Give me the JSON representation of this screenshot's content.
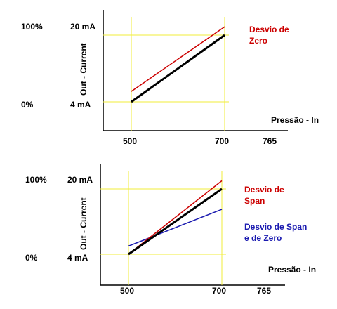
{
  "chart_data": [
    {
      "type": "line",
      "ylabel": "Out - Current",
      "xlabel": "Pressão - In",
      "x_ticks": [
        "500",
        "700",
        "765"
      ],
      "y_ticks": [
        "4 mA",
        "20 mA"
      ],
      "y_percent": [
        "0%",
        "100%"
      ],
      "xlim": [
        442,
        790
      ],
      "ylim": [
        -6,
        30
      ],
      "series": [
        {
          "name": "",
          "color": "#000000",
          "x": [
            500,
            700
          ],
          "y": [
            4,
            20
          ]
        },
        {
          "name": "Desvio de Zero",
          "color": "#cc0000",
          "x": [
            500,
            700
          ],
          "y": [
            6.5,
            22
          ]
        }
      ],
      "annotations": [
        {
          "text": "Desvio de",
          "color": "#cc0000"
        },
        {
          "text": "Zero",
          "color": "#cc0000"
        }
      ]
    },
    {
      "type": "line",
      "ylabel": "Out - Current",
      "xlabel": "Pressão - In",
      "x_ticks": [
        "500",
        "700",
        "765"
      ],
      "y_ticks": [
        "4 mA",
        "20 mA"
      ],
      "y_percent": [
        "0%",
        "100%"
      ],
      "xlim": [
        442,
        790
      ],
      "ylim": [
        -6,
        30
      ],
      "series": [
        {
          "name": "",
          "color": "#000000",
          "x": [
            500,
            700
          ],
          "y": [
            4,
            20
          ]
        },
        {
          "name": "Desvio de Span",
          "color": "#cc0000",
          "x": [
            500,
            700
          ],
          "y": [
            4,
            22
          ]
        },
        {
          "name": "Desvio de Span e de Zero",
          "color": "#1a1ab0",
          "x": [
            500,
            700
          ],
          "y": [
            6,
            15
          ]
        }
      ],
      "annotations": [
        {
          "text": "Desvio de",
          "color": "#cc0000"
        },
        {
          "text": "Span",
          "color": "#cc0000"
        },
        {
          "text": "Desvio de Span",
          "color": "#1a1ab0"
        },
        {
          "text": "e de Zero",
          "color": "#1a1ab0"
        }
      ]
    }
  ]
}
